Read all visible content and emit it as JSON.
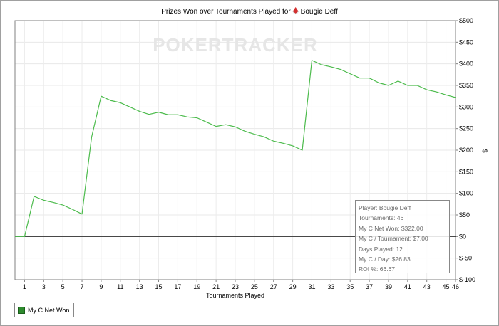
{
  "chart_data": {
    "type": "line",
    "title_prefix": "Prizes Won over Tournaments Played for",
    "title_player": "Bougie Deff",
    "xlabel": "Tournaments Played",
    "ylabel": "$",
    "xlim": [
      0,
      46
    ],
    "ylim": [
      -100,
      500
    ],
    "x_ticks": [
      1,
      3,
      5,
      7,
      9,
      11,
      13,
      15,
      17,
      19,
      21,
      23,
      25,
      27,
      29,
      31,
      33,
      35,
      37,
      39,
      41,
      43,
      45,
      46
    ],
    "y_ticks": [
      -100,
      -50,
      0,
      50,
      100,
      150,
      200,
      250,
      300,
      350,
      400,
      450,
      500
    ],
    "y_tick_labels": [
      "$-100",
      "$-50",
      "$0",
      "$50",
      "$100",
      "$150",
      "$200",
      "$250",
      "$300",
      "$350",
      "$400",
      "$450",
      "$500"
    ],
    "grid": true,
    "legend_position": "bottom-left",
    "series": [
      {
        "name": "My C Net Won",
        "color": "#4cbb4c",
        "x": [
          0,
          1,
          2,
          3,
          4,
          5,
          6,
          7,
          8,
          9,
          10,
          11,
          12,
          13,
          14,
          15,
          16,
          17,
          18,
          19,
          20,
          21,
          22,
          23,
          24,
          25,
          26,
          27,
          28,
          29,
          30,
          31,
          32,
          33,
          34,
          35,
          36,
          37,
          38,
          39,
          40,
          41,
          42,
          43,
          44,
          45,
          46
        ],
        "values": [
          0,
          0,
          93,
          84,
          79,
          73,
          63,
          52,
          230,
          325,
          315,
          310,
          300,
          290,
          283,
          288,
          282,
          282,
          277,
          275,
          265,
          255,
          259,
          254,
          244,
          237,
          231,
          221,
          216,
          210,
          200,
          408,
          398,
          393,
          387,
          377,
          367,
          367,
          356,
          350,
          360,
          350,
          350,
          340,
          335,
          328,
          322
        ]
      }
    ]
  },
  "watermark": "POKERTRACKER",
  "stats": {
    "player": "Player: Bougie Deff",
    "tournaments": "Tournaments: 46",
    "net_won": "My C Net Won: $322.00",
    "per_tournament": "My C / Tournament: $7.00",
    "days_played": "Days Played: 12",
    "per_day": "My C / Day: $26.83",
    "roi": "ROI %: 66.67"
  },
  "legend": {
    "label": "My C Net Won",
    "color": "#2e8b2e"
  }
}
